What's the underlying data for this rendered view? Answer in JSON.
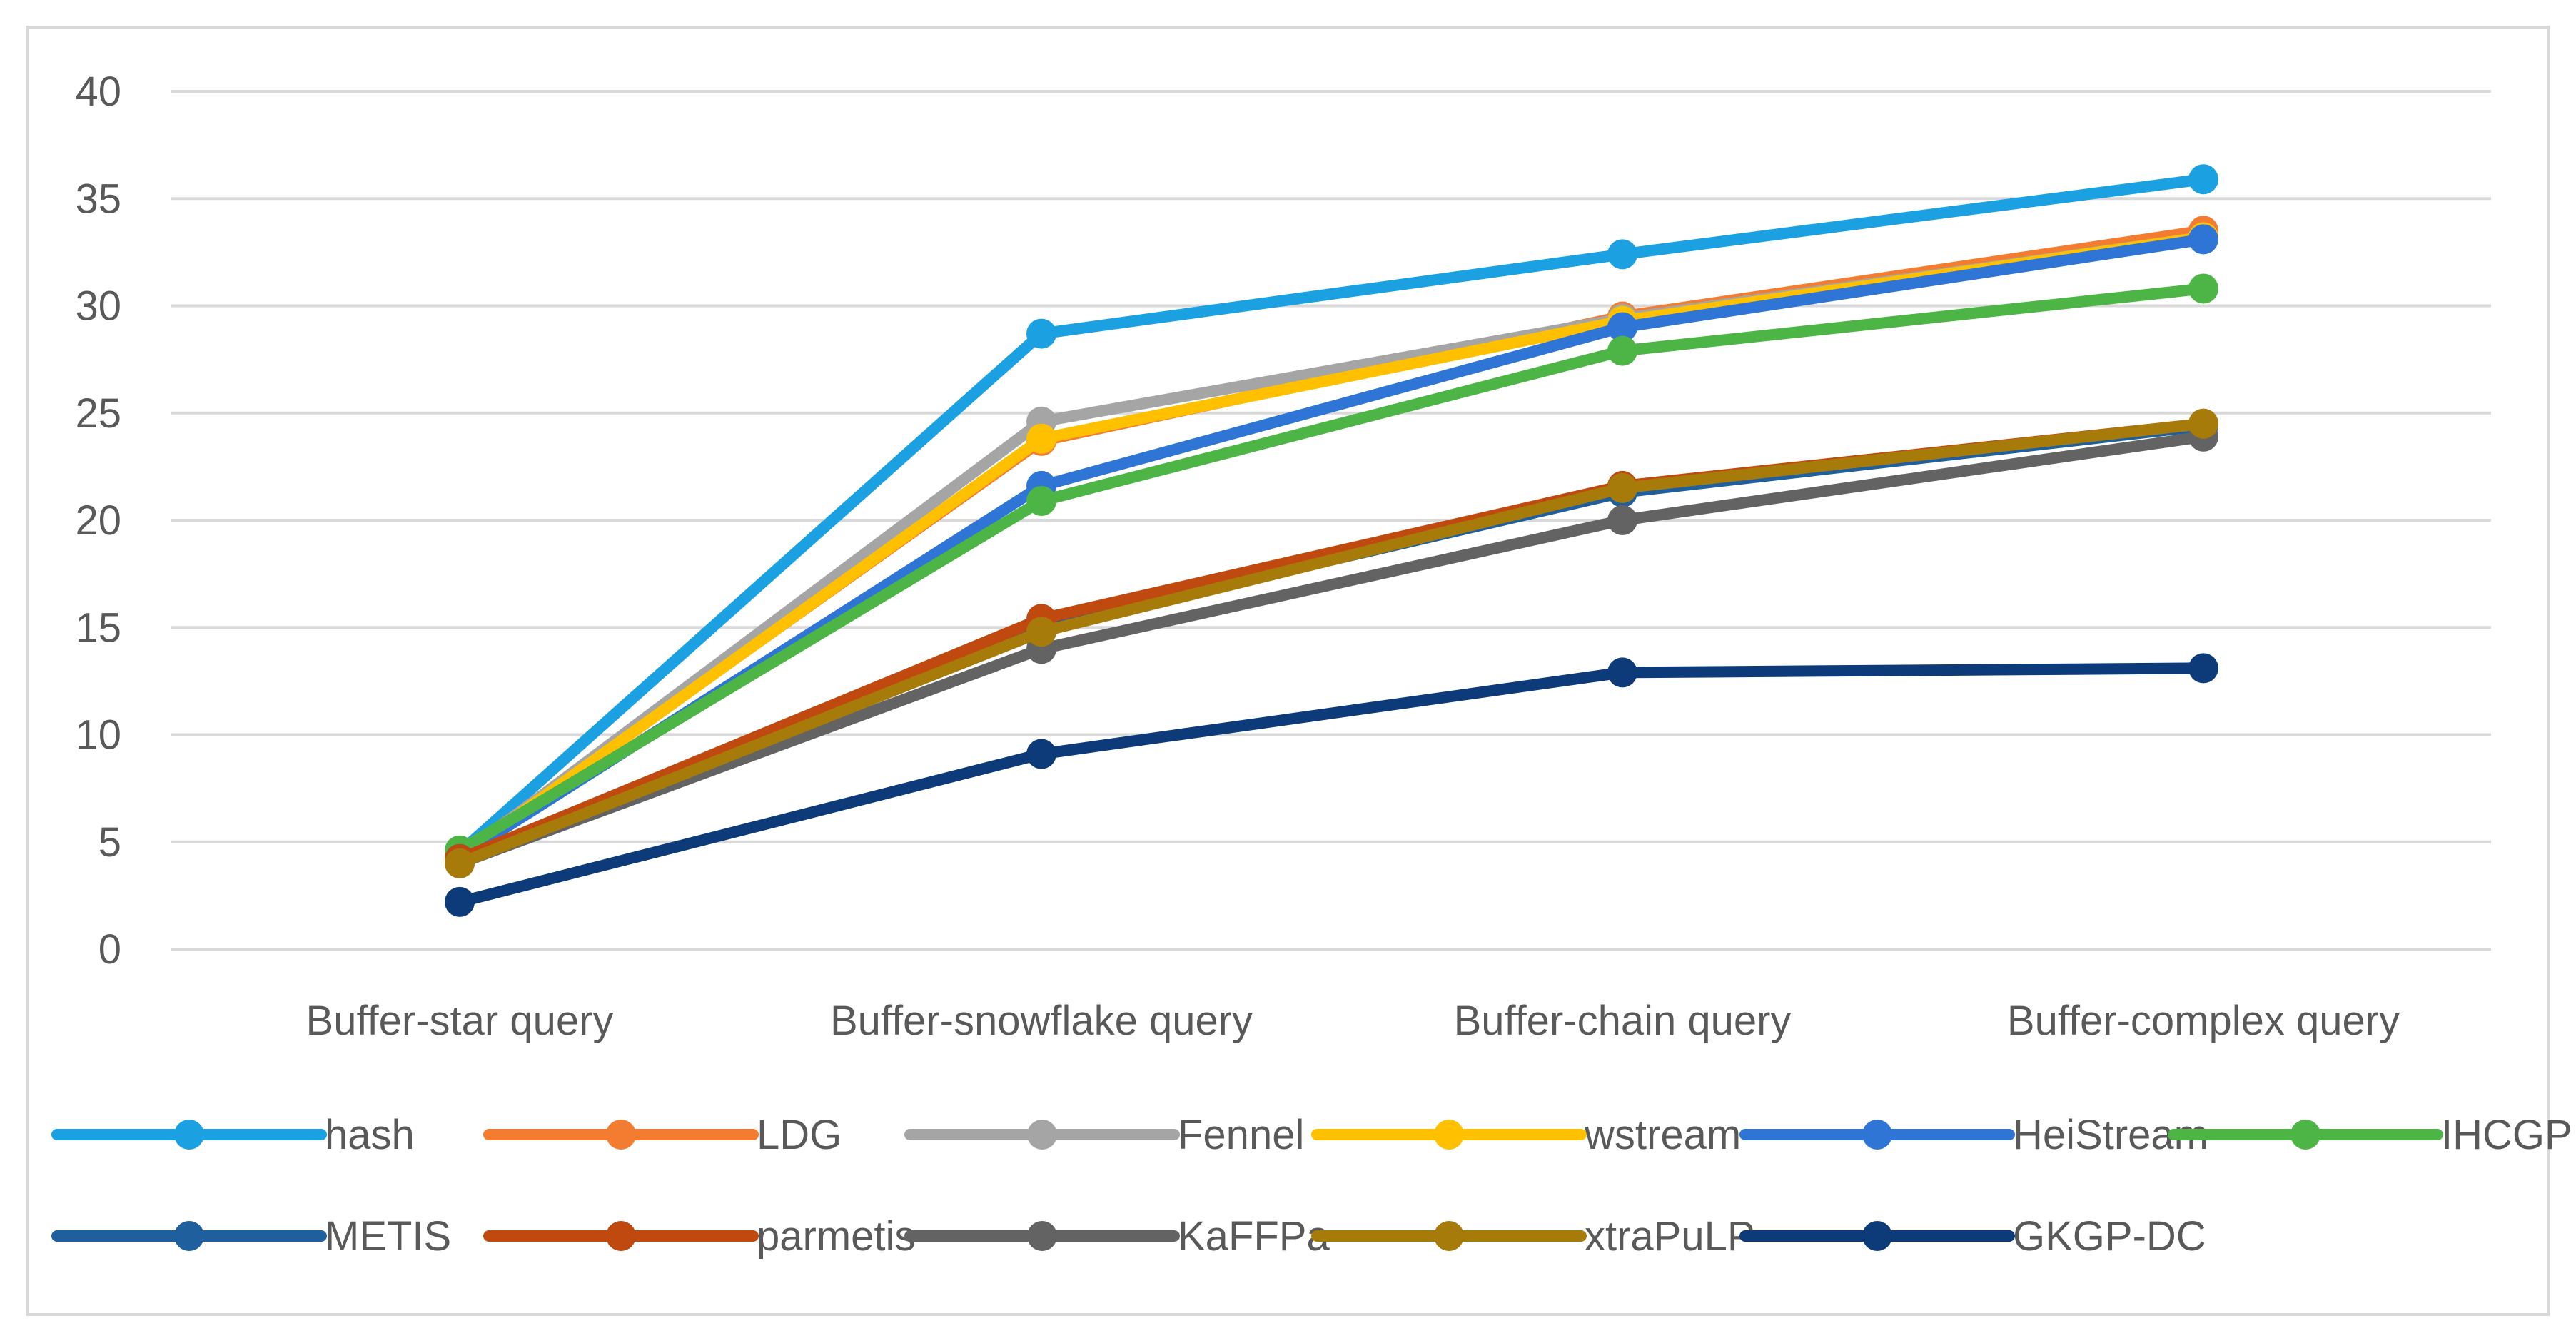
{
  "chart_data": {
    "type": "line",
    "title": "",
    "xlabel": "",
    "ylabel": "",
    "ylim": [
      0,
      40
    ],
    "yticks": [
      0,
      5,
      10,
      15,
      20,
      25,
      30,
      35,
      40
    ],
    "grid": true,
    "legend_position": "bottom",
    "categories": [
      "Buffer-star query",
      "Buffer-snowflake query",
      "Buffer-chain query",
      "Buffer-complex query"
    ],
    "series": [
      {
        "name": "hash",
        "color": "#1ba1e2",
        "values": [
          4.5,
          28.7,
          32.4,
          35.9
        ]
      },
      {
        "name": "LDG",
        "color": "#f47c30",
        "values": [
          4.4,
          23.7,
          29.5,
          33.5
        ]
      },
      {
        "name": "Fennel",
        "color": "#a5a5a5",
        "values": [
          4.3,
          24.6,
          29.4,
          33.2
        ]
      },
      {
        "name": "wstream",
        "color": "#ffc000",
        "values": [
          4.3,
          23.8,
          29.3,
          33.2
        ]
      },
      {
        "name": "HeiStream",
        "color": "#2e75d6",
        "values": [
          4.3,
          21.6,
          29.0,
          33.1
        ]
      },
      {
        "name": "IHCGP",
        "color": "#4db546",
        "values": [
          4.6,
          20.9,
          27.9,
          30.8
        ]
      },
      {
        "name": "METIS",
        "color": "#1f5f9e",
        "values": [
          4.2,
          15.0,
          21.3,
          24.4
        ]
      },
      {
        "name": "parmetis",
        "color": "#c0490f",
        "values": [
          4.2,
          15.4,
          21.6,
          24.5
        ]
      },
      {
        "name": "KaFFPa",
        "color": "#636363",
        "values": [
          4.0,
          14.0,
          20.0,
          23.9
        ]
      },
      {
        "name": "xtraPuLP",
        "color": "#a77b0a",
        "values": [
          4.0,
          14.8,
          21.5,
          24.5
        ]
      },
      {
        "name": "GKGP-DC",
        "color": "#0d3a78",
        "values": [
          2.2,
          9.1,
          12.9,
          13.1
        ]
      }
    ]
  }
}
